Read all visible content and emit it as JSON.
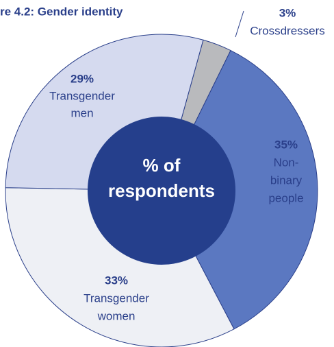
{
  "chart_data": {
    "type": "donut",
    "title": "re 4.2: Gender identity",
    "center_label": [
      "% of",
      "respondents"
    ],
    "categories": [
      [
        "Crossdressers"
      ],
      [
        "Non-",
        "binary",
        "people"
      ],
      [
        "Transgender",
        "women"
      ],
      [
        "Transgender",
        "men"
      ]
    ],
    "values": [
      3,
      35,
      33,
      29
    ],
    "value_labels": [
      "3%",
      "35%",
      "33%",
      "29%"
    ],
    "colors": [
      "#b9babd",
      "#5b78c1",
      "#eef0f5",
      "#d5daef"
    ],
    "center_color": "#253f8c"
  }
}
